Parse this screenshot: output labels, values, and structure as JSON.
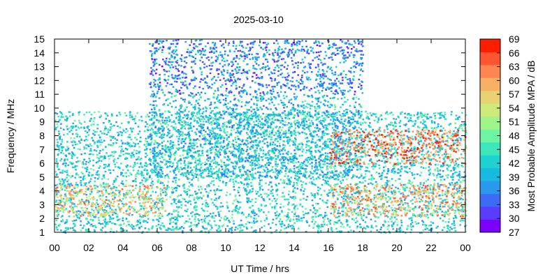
{
  "chart_data": {
    "type": "heatmap",
    "title": "2025-03-10",
    "xlabel": "UT Time / hrs",
    "ylabel": "Frequency / MHz",
    "colorbar_label": "Most Probable Amplitude MPA / dB",
    "xlim": [
      0,
      24
    ],
    "ylim": [
      1,
      15
    ],
    "x_ticks": [
      "00",
      "02",
      "04",
      "06",
      "08",
      "10",
      "12",
      "14",
      "16",
      "18",
      "20",
      "22",
      "00"
    ],
    "y_ticks": [
      "1",
      "2",
      "3",
      "4",
      "5",
      "6",
      "7",
      "8",
      "9",
      "10",
      "11",
      "12",
      "13",
      "14",
      "15"
    ],
    "colorbar": {
      "range": [
        27,
        69
      ],
      "ticks": [
        "27",
        "30",
        "33",
        "36",
        "39",
        "42",
        "45",
        "48",
        "51",
        "54",
        "57",
        "60",
        "63",
        "66",
        "69"
      ],
      "colors": [
        "#7b00ff",
        "#5a3cff",
        "#3c6cf6",
        "#2a98ec",
        "#1ab9e0",
        "#1ed2d2",
        "#3ee6bc",
        "#6ef5a3",
        "#9ff48a",
        "#cdea7a",
        "#e8d273",
        "#f8b065",
        "#ff8652",
        "#ff5530",
        "#ff1e00"
      ]
    },
    "regions": [
      {
        "name": "low-band",
        "x": [
          0,
          24
        ],
        "freq": [
          1,
          9.8
        ],
        "level_db": 42
      },
      {
        "name": "low-band-strong-early",
        "x": [
          0,
          6.5
        ],
        "freq": [
          2.2,
          4.5
        ],
        "level_db": 58
      },
      {
        "name": "low-band-strong-late",
        "x": [
          16,
          24
        ],
        "freq": [
          2.2,
          4.5
        ],
        "level_db": 60
      },
      {
        "name": "mid-band-day",
        "x": [
          5.5,
          18
        ],
        "freq": [
          5,
          11
        ],
        "level_db": 40
      },
      {
        "name": "high-band-day",
        "x": [
          5.5,
          18
        ],
        "freq": [
          11,
          15
        ],
        "level_db": 35
      },
      {
        "name": "evening-band",
        "x": [
          16,
          24
        ],
        "freq": [
          6,
          8.5
        ],
        "level_db": 64
      }
    ]
  }
}
